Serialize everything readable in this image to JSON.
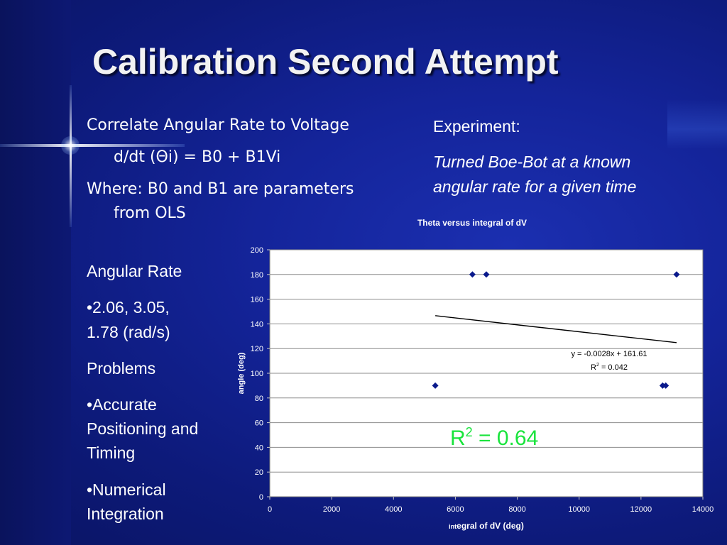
{
  "slide": {
    "title": "Calibration Second Attempt",
    "left_top": {
      "line1": "Correlate Angular Rate to Voltage",
      "line2": "d/dt (Θi) = B0 + B1Vi",
      "line3a": "Where:  B0 and B1 are parameters",
      "line3b": "from OLS"
    },
    "experiment": {
      "heading": "Experiment:",
      "line1": "Turned Boe-Bot at a known",
      "line2": "angular rate for a given time"
    },
    "left_list": {
      "angular_rate_heading": "Angular Rate",
      "rates_line1": "•2.06, 3.05,",
      "rates_line2": "1.78 (rad/s)",
      "problems_heading": "Problems",
      "p1_line1": "•Accurate",
      "p1_line2": "Positioning and",
      "p1_line3": "Timing",
      "p2_line1": "•Numerical",
      "p2_line2": "Integration"
    },
    "r2_overlay": {
      "prefix": "R",
      "sup": "2",
      "suffix": " = 0.64"
    }
  },
  "chart_data": {
    "type": "scatter",
    "title": "Theta versus integral of dV",
    "xlabel_small": "int",
    "xlabel_rest": "egral of dV (deg)",
    "ylabel": "angle (deg)",
    "xlim": [
      0,
      14000
    ],
    "ylim": [
      0,
      200
    ],
    "x_ticks": [
      "0",
      "2000",
      "4000",
      "6000",
      "8000",
      "10000",
      "12000",
      "14000"
    ],
    "y_ticks": [
      "0",
      "20",
      "40",
      "60",
      "80",
      "100",
      "120",
      "140",
      "160",
      "180",
      "200"
    ],
    "grid": true,
    "points": [
      {
        "x": 5350,
        "y": 90
      },
      {
        "x": 6550,
        "y": 180
      },
      {
        "x": 7000,
        "y": 180
      },
      {
        "x": 12700,
        "y": 90
      },
      {
        "x": 12800,
        "y": 90
      },
      {
        "x": 13150,
        "y": 180
      }
    ],
    "trendline": {
      "slope": -0.0028,
      "intercept": 161.61,
      "x_from": 5350,
      "x_to": 13150
    },
    "equation_label": "y = -0.0028x + 161.61",
    "r2_label_prefix": "R",
    "r2_label_sup": "2",
    "r2_label_suffix": " = 0.042",
    "colors": {
      "marker": "#0a1a8c",
      "line": "#000000",
      "grid": "#8c8c8c",
      "plot_bg": "#ffffff"
    }
  }
}
